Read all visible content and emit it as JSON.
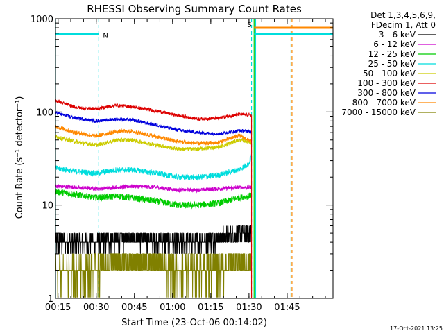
{
  "chart_data": {
    "type": "line",
    "title": "RHESSI Observing Summary Count Rates",
    "xlabel": "Start Time (23-Oct-06 00:14:02)",
    "ylabel": "Count Rate (s⁻¹ detector⁻¹)",
    "yscale": "log",
    "ylim": [
      1,
      1000
    ],
    "xlim_minutes": [
      0,
      109
    ],
    "x_ticks": [
      {
        "minute": 1,
        "label": "00:15"
      },
      {
        "minute": 16,
        "label": "00:30"
      },
      {
        "minute": 31,
        "label": "00:45"
      },
      {
        "minute": 46,
        "label": "01:00"
      },
      {
        "minute": 61,
        "label": "01:15"
      },
      {
        "minute": 76,
        "label": "01:30"
      },
      {
        "minute": 91,
        "label": "01:45"
      }
    ],
    "y_ticks": [
      {
        "value": 1,
        "label": "1"
      },
      {
        "value": 10,
        "label": "10"
      },
      {
        "value": 100,
        "label": "100"
      },
      {
        "value": 1000,
        "label": "1000"
      }
    ],
    "legend": {
      "placement": "top-right",
      "header": [
        "Det 1,3,4,5,6,9,",
        "FDecim 1, Att 0"
      ]
    },
    "series": [
      {
        "name": "3 - 6 keV",
        "color": "#000000",
        "x": [
          0,
          8,
          16,
          24,
          30,
          40,
          48,
          56,
          64,
          72,
          76,
          77
        ],
        "values": [
          4,
          4,
          4,
          4.3,
          4.5,
          4.2,
          4,
          4.1,
          4.5,
          5,
          5.2,
          5.2
        ]
      },
      {
        "name": "6 - 12 keV",
        "color": "#cc00cc",
        "x": [
          0,
          8,
          16,
          24,
          30,
          40,
          48,
          56,
          64,
          72,
          76,
          77
        ],
        "values": [
          16,
          15.5,
          15,
          15.5,
          16,
          15.5,
          14.5,
          14.5,
          15,
          15.5,
          15.5,
          15.5
        ]
      },
      {
        "name": "12 - 25 keV",
        "color": "#00cc00",
        "x": [
          0,
          8,
          16,
          24,
          30,
          40,
          48,
          56,
          64,
          72,
          76,
          77
        ],
        "values": [
          14,
          13,
          12,
          12.5,
          12,
          11,
          10,
          10,
          10.5,
          12,
          12.5,
          13
        ]
      },
      {
        "name": "25 - 50 keV",
        "color": "#00dddd",
        "x": [
          0,
          8,
          16,
          24,
          30,
          40,
          48,
          56,
          64,
          72,
          76,
          77
        ],
        "values": [
          25,
          23,
          22,
          24,
          24,
          22,
          20,
          20,
          21,
          24,
          28,
          34
        ]
      },
      {
        "name": "50 - 100 keV",
        "color": "#cccc00",
        "x": [
          0,
          8,
          16,
          24,
          30,
          40,
          48,
          56,
          64,
          72,
          76,
          77
        ],
        "values": [
          54,
          48,
          44,
          50,
          50,
          44,
          40,
          40,
          42,
          50,
          48,
          46
        ]
      },
      {
        "name": "100 - 300 keV",
        "color": "#dd0000",
        "x": [
          0,
          8,
          16,
          24,
          30,
          40,
          48,
          56,
          64,
          72,
          76,
          77
        ],
        "values": [
          132,
          112,
          108,
          118,
          114,
          102,
          92,
          84,
          86,
          94,
          93,
          92
        ]
      },
      {
        "name": "300 - 800 keV",
        "color": "#0000dd",
        "x": [
          0,
          8,
          16,
          24,
          30,
          40,
          48,
          56,
          64,
          72,
          76,
          77
        ],
        "values": [
          98,
          86,
          80,
          84,
          82,
          72,
          64,
          60,
          58,
          63,
          62,
          60
        ]
      },
      {
        "name": "800 - 7000 keV",
        "color": "#ff8800",
        "x": [
          0,
          8,
          16,
          24,
          30,
          40,
          48,
          56,
          64,
          72,
          76,
          77
        ],
        "values": [
          70,
          60,
          55,
          62,
          62,
          54,
          48,
          46,
          47,
          56,
          50,
          48
        ]
      },
      {
        "name": "7000 - 15000 keV",
        "color": "#808000",
        "x": [
          0,
          8,
          16,
          24,
          30,
          40,
          48,
          56,
          64,
          72,
          76,
          77
        ],
        "values": [
          1.9,
          2,
          2.1,
          2.5,
          2.5,
          2.3,
          2,
          2.1,
          2.2,
          2.5,
          2.4,
          2.3
        ]
      }
    ],
    "flags": [
      {
        "label": "N",
        "color": "#00dddd",
        "start_minute": 0,
        "end_minute": 17,
        "level": 680
      },
      {
        "label": "S",
        "color": "#ff8800",
        "start_minute": 78,
        "end_minute": 109,
        "level": 800
      },
      {
        "label": "",
        "color": "#00dddd",
        "start_minute": 78,
        "end_minute": 109,
        "level": 680
      }
    ],
    "vlines": [
      {
        "minute": 0,
        "color": "#00dddd",
        "style": "solid"
      },
      {
        "minute": 17,
        "color": "#00dddd",
        "style": "dashed"
      },
      {
        "minute": 77,
        "color": "#00dddd",
        "style": "dashed"
      },
      {
        "minute": 78,
        "color": "#00cc00",
        "style": "solid"
      },
      {
        "minute": 78.6,
        "color": "#00dddd",
        "style": "solid"
      },
      {
        "minute": 92.5,
        "color": "#00dddd",
        "style": "dashed"
      },
      {
        "minute": 92.9,
        "color": "#ff8800",
        "style": "dashed"
      }
    ]
  },
  "footer": {
    "timestamp": "17-Oct-2021 13:25"
  }
}
